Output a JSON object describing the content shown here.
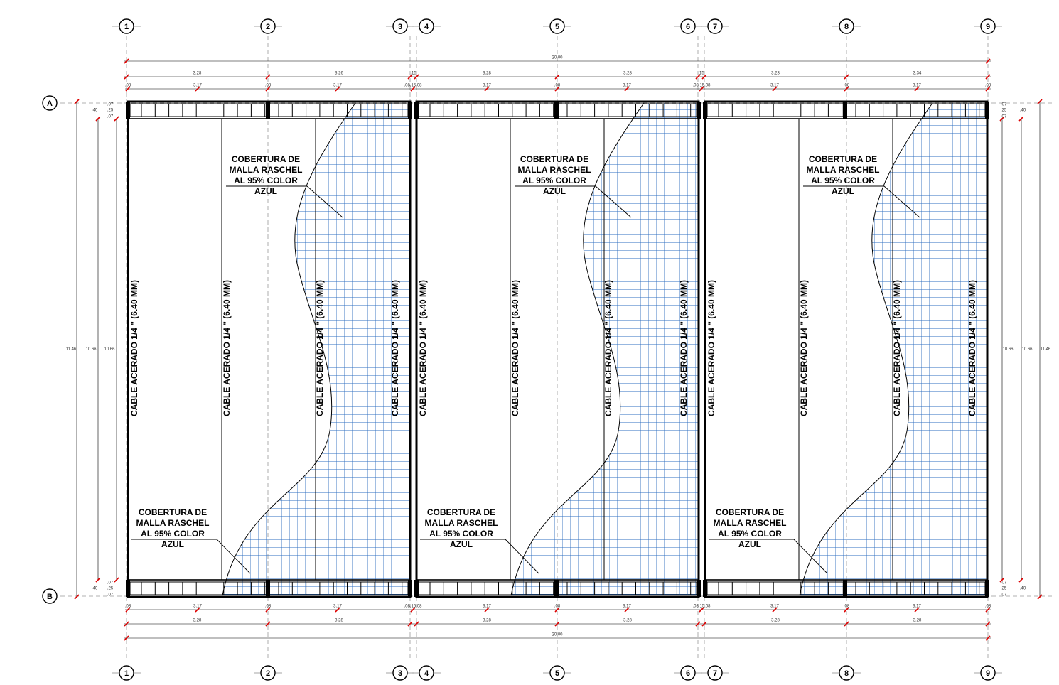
{
  "grid_columns": [
    "1",
    "2",
    "3",
    "4",
    "5",
    "6",
    "7",
    "8",
    "9"
  ],
  "grid_rows": [
    "A",
    "B"
  ],
  "top_dimensions": {
    "overall": "20.00",
    "spans": [
      "3.28",
      "3.26",
      ".15",
      "3.28",
      "3.28",
      ".15",
      "3.23",
      "3.34"
    ],
    "details": [
      ".08",
      "3.17",
      ".08",
      "3.17",
      ".08.15.08",
      "3.17",
      ".08",
      "3.17",
      ".08.15.08",
      "3.17",
      ".08",
      "3.17",
      ".08"
    ]
  },
  "bottom_dimensions": {
    "details": [
      ".08",
      "3.17",
      ".08",
      "3.17",
      ".08.15.08",
      "3.17",
      ".08",
      "3.17",
      ".08.15.08",
      "3.17",
      ".08",
      "3.17",
      ".08"
    ],
    "spans": [
      "3.28",
      "3.28",
      "3.28",
      "3.28",
      "3.28",
      "3.28"
    ],
    "overall": "20.00"
  },
  "vertical_dimensions": {
    "overall": "11.46",
    "inner": "10.66",
    "small": [
      ".07",
      ".25",
      ".07"
    ],
    "beam": ".40"
  },
  "cable_label": "CABLE ACERADO 1/4 \" (6.40 MM)",
  "callout_lines": [
    "COBERTURA DE",
    "MALLA RASCHEL",
    "AL 95% COLOR",
    "AZUL"
  ]
}
